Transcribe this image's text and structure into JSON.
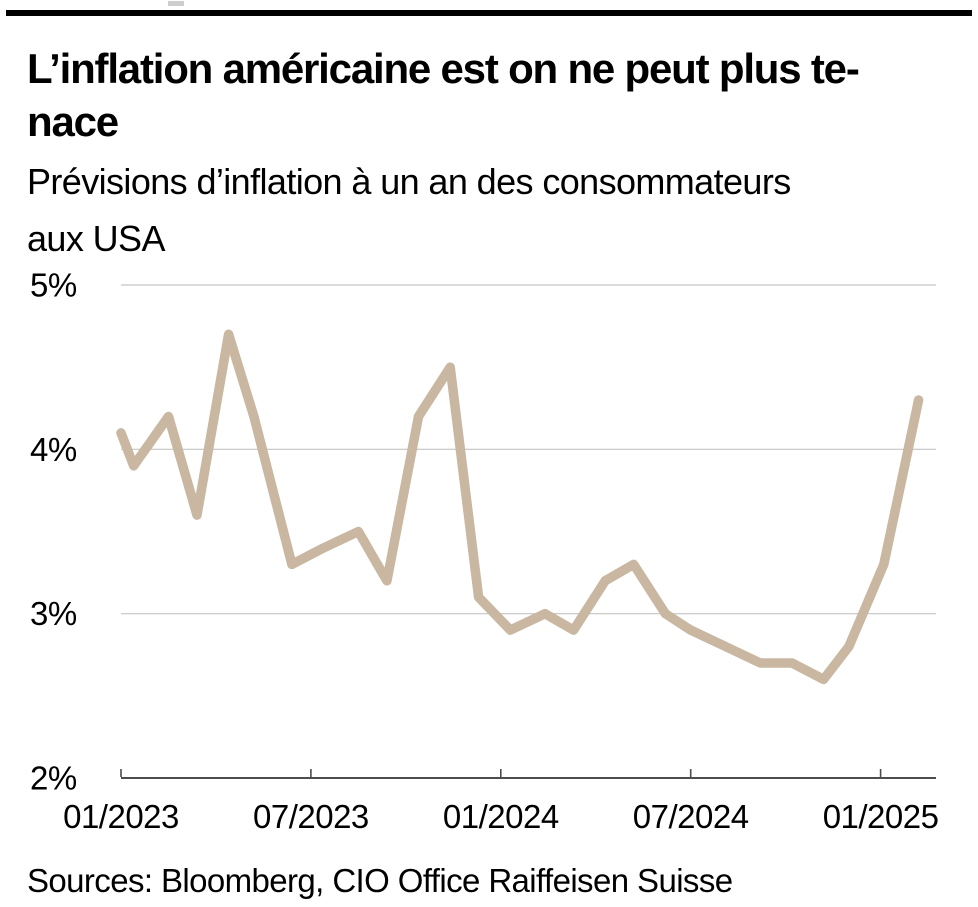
{
  "page": {
    "top_bar_color": "#000000"
  },
  "header": {
    "title_lines": [
      "L’inflation américaine est on ne peut plus te-",
      "nace"
    ],
    "subtitle_lines": [
      "Prévisions d’inflation à un an des consommateurs",
      "aux USA"
    ]
  },
  "chart_data": {
    "type": "line",
    "title": "L’inflation américaine est on ne peut plus tenace",
    "subtitle": "Prévisions d’inflation à un an des consommateurs aux USA",
    "unit": "%",
    "line_color": "#C9B7A1",
    "grid_color": "#C4C4C4",
    "axis_color": "#4D4D4D",
    "text_color": "#000000",
    "ylim": [
      2,
      5
    ],
    "xlim_months": [
      0,
      25.8
    ],
    "grid": "horizontal-only",
    "legend": "none",
    "y_ticks": [
      {
        "label": "5%",
        "value": 5
      },
      {
        "label": "4%",
        "value": 4
      },
      {
        "label": "3%",
        "value": 3
      },
      {
        "label": "2%",
        "value": 2
      }
    ],
    "x_ticks": [
      {
        "label": "01/2023",
        "month": 0
      },
      {
        "label": "07/2023",
        "month": 6
      },
      {
        "label": "01/2024",
        "month": 12
      },
      {
        "label": "07/2024",
        "month": 18
      },
      {
        "label": "01/2025",
        "month": 24
      }
    ],
    "series": [
      {
        "name": "Prévisions d’inflation à un an des consommateurs aux USA",
        "points_month_value": [
          [
            0,
            4.1
          ],
          [
            0.4,
            3.9
          ],
          [
            1.5,
            4.2
          ],
          [
            2.4,
            3.6
          ],
          [
            3.4,
            4.7
          ],
          [
            4.2,
            4.2
          ],
          [
            5.4,
            3.3
          ],
          [
            6.4,
            3.4
          ],
          [
            7.5,
            3.5
          ],
          [
            8.4,
            3.2
          ],
          [
            9.4,
            4.2
          ],
          [
            10.4,
            4.5
          ],
          [
            11.3,
            3.1
          ],
          [
            12.3,
            2.9
          ],
          [
            13.4,
            3.0
          ],
          [
            14.3,
            2.9
          ],
          [
            15.3,
            3.2
          ],
          [
            16.2,
            3.3
          ],
          [
            17.2,
            3.0
          ],
          [
            18.0,
            2.9
          ],
          [
            19.1,
            2.8
          ],
          [
            20.2,
            2.7
          ],
          [
            21.2,
            2.7
          ],
          [
            22.2,
            2.6
          ],
          [
            23.0,
            2.8
          ],
          [
            24.1,
            3.3
          ],
          [
            25.2,
            4.3
          ]
        ]
      }
    ]
  },
  "footer": {
    "source": "Sources: Bloomberg, CIO Office Raiffeisen Suisse"
  }
}
